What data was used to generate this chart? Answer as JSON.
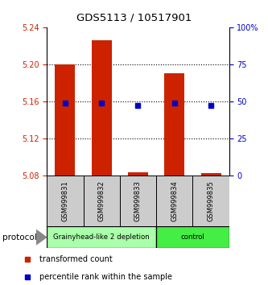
{
  "title": "GDS5113 / 10517901",
  "samples": [
    "GSM999831",
    "GSM999832",
    "GSM999833",
    "GSM999834",
    "GSM999835"
  ],
  "bar_bottom": 5.08,
  "bar_tops": [
    5.2,
    5.226,
    5.083,
    5.19,
    5.082
  ],
  "percentile_values": [
    5.158,
    5.158,
    5.155,
    5.158,
    5.155
  ],
  "ylim_left": [
    5.08,
    5.24
  ],
  "ylim_right": [
    0,
    100
  ],
  "yticks_left": [
    5.08,
    5.12,
    5.16,
    5.2,
    5.24
  ],
  "yticks_right": [
    0,
    25,
    50,
    75,
    100
  ],
  "ytick_labels_right": [
    "0",
    "25",
    "50",
    "75",
    "100%"
  ],
  "bar_color": "#cc2200",
  "dot_color": "#0000cc",
  "groups": [
    {
      "label": "Grainyhead-like 2 depletion",
      "indices": [
        0,
        1,
        2
      ],
      "color": "#aaffaa"
    },
    {
      "label": "control",
      "indices": [
        3,
        4
      ],
      "color": "#44ee44"
    }
  ],
  "protocol_label": "protocol",
  "legend_entries": [
    {
      "color": "#cc2200",
      "label": "transformed count"
    },
    {
      "color": "#0000cc",
      "label": "percentile rank within the sample"
    }
  ],
  "bg_color": "white",
  "plot_bg": "white",
  "bar_width": 0.55,
  "label_color_left": "#cc2200",
  "label_color_right": "#0000cc"
}
